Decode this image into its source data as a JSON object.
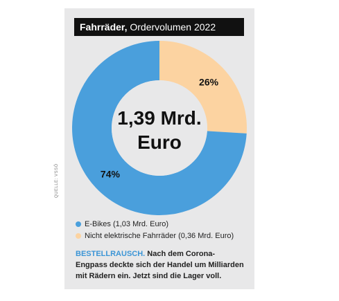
{
  "title": {
    "main": "Fahrräder",
    "separator": ",",
    "sub": "Ordervolumen 2022"
  },
  "source": "QUELLE: VSSÖ",
  "center_label": {
    "line1": "1,39 Mrd.",
    "line2": "Euro"
  },
  "legend": [
    {
      "label": "E-Bikes (1,03 Mrd. Euro)",
      "color": "#4a9fdc"
    },
    {
      "label": "Nicht elektrische Fahrräder (0,36 Mrd. Euro)",
      "color": "#fcd3a1"
    }
  ],
  "caption": {
    "head": "BESTELLRAUSCH.",
    "body": "Nach dem Corona-Engpass deckte sich der Handel um Milliarden mit Rädern ein. Jetzt sind die Lager voll."
  },
  "colors": {
    "card_background": "#e8e8e9",
    "title_bar": "#111111",
    "accent_blue": "#4a9fdc",
    "accent_peach": "#fcd3a1",
    "center": "#e8e8e9"
  },
  "chart_data": {
    "type": "pie",
    "donut": true,
    "total_label": "1,39 Mrd. Euro",
    "slices": [
      {
        "name": "Nicht elektrische Fahrräder",
        "value": 0.36,
        "percent": 26,
        "label": "26%",
        "color": "#fcd3a1"
      },
      {
        "name": "E-Bikes",
        "value": 1.03,
        "percent": 74,
        "label": "74%",
        "color": "#4a9fdc"
      }
    ],
    "start_angle_deg": 0,
    "direction": "clockwise",
    "legend_position": "bottom-left"
  }
}
